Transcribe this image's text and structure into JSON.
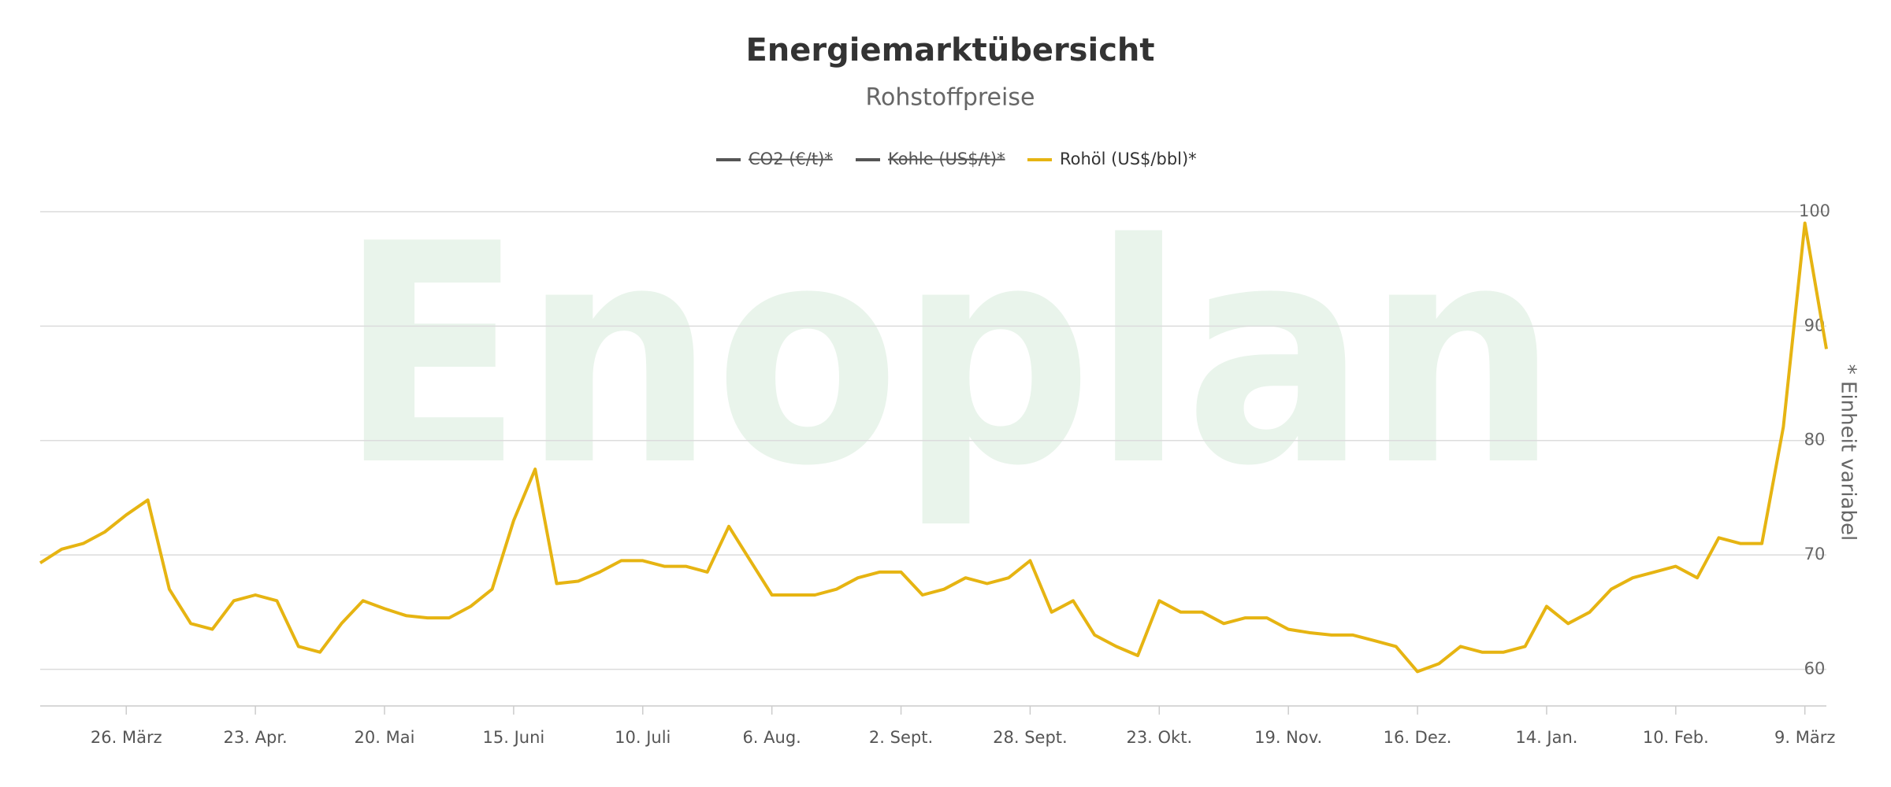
{
  "chart_data": {
    "type": "line",
    "title": "Energiemarktübersicht",
    "subtitle": "Rohstoffpreise",
    "watermark": "Enoplan",
    "y_axis_label": "* Einheit variabel",
    "categories": [
      null,
      null,
      null,
      null,
      "26. März",
      null,
      null,
      null,
      null,
      null,
      "23. Apr.",
      null,
      null,
      null,
      null,
      null,
      "20. Mai",
      null,
      null,
      null,
      null,
      null,
      "15. Juni",
      null,
      null,
      null,
      null,
      null,
      "10. Juli",
      null,
      null,
      null,
      null,
      null,
      "6. Aug.",
      null,
      null,
      null,
      null,
      null,
      "2. Sept.",
      null,
      null,
      null,
      null,
      null,
      "28. Sept.",
      null,
      null,
      null,
      null,
      null,
      "23. Okt.",
      null,
      null,
      null,
      null,
      null,
      "19. Nov.",
      null,
      null,
      null,
      null,
      null,
      "16. Dez.",
      null,
      null,
      null,
      null,
      null,
      "14. Jan.",
      null,
      null,
      null,
      null,
      null,
      "10. Feb.",
      null,
      null,
      null,
      null,
      null,
      "9. März",
      null
    ],
    "series": [
      {
        "name": "CO2 (€/t)*",
        "color": "#555555",
        "visible": false
      },
      {
        "name": "Kohle (US$/t)*",
        "color": "#555555",
        "visible": false
      },
      {
        "name": "Rohöl (US$/bbl)*",
        "color": "#e6b412",
        "visible": true,
        "values": [
          69.3,
          70.5,
          71,
          72,
          73.5,
          74.8,
          67,
          64,
          63.5,
          66,
          66.5,
          66,
          62,
          61.5,
          64,
          66,
          65.3,
          64.7,
          64.5,
          64.5,
          65.5,
          67,
          73,
          77.5,
          67.5,
          67.7,
          68.5,
          69.5,
          69.5,
          69,
          69,
          68.5,
          72.5,
          69.5,
          66.5,
          66.5,
          66.5,
          67,
          68,
          68.5,
          68.5,
          66.5,
          67,
          68,
          67.5,
          68,
          69.5,
          65,
          66,
          63,
          62,
          61.2,
          66,
          65,
          65,
          64,
          64.5,
          64.5,
          63.5,
          63.2,
          63,
          63,
          62.5,
          62,
          59.8,
          60.5,
          62,
          61.5,
          61.5,
          62,
          65.5,
          64,
          65,
          67,
          68,
          68.5,
          69,
          68,
          71.5,
          71,
          71,
          81.2,
          99,
          88
        ]
      }
    ],
    "ylim": [
      56.8,
      100
    ],
    "yticks": [
      60,
      70,
      80,
      90,
      100
    ],
    "grid": true
  }
}
